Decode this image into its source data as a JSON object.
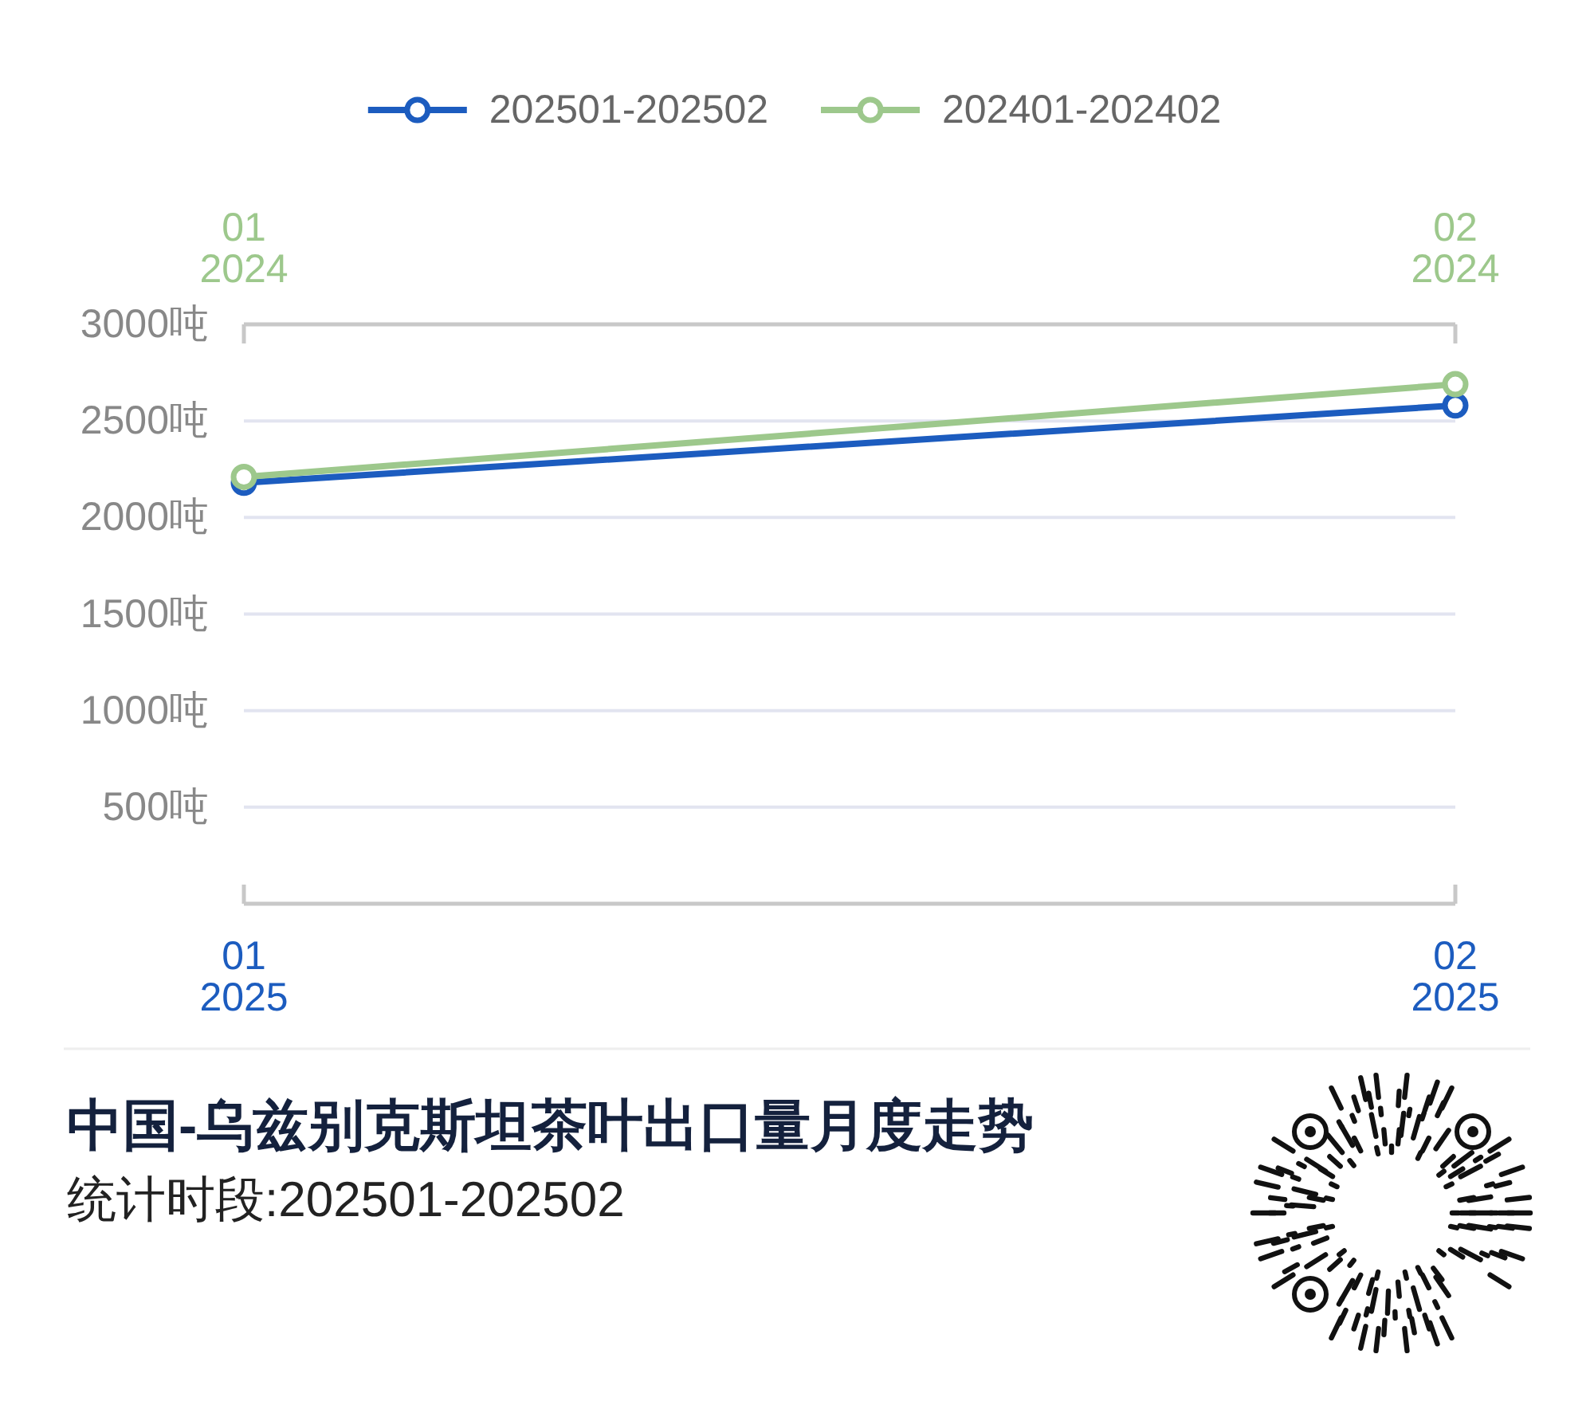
{
  "chart_data": {
    "type": "line",
    "title": "中国-乌兹别克斯坦茶叶出口量月度走势",
    "subtitle": "统计时段:202501-202502",
    "xlim": [
      "2025-01",
      "2025-02"
    ],
    "xticks": [
      {
        "value": "2025-01",
        "label": "01\n2025"
      },
      {
        "value": "2025-02",
        "label": "02\n2025"
      }
    ],
    "x2lim": [
      "2024-01",
      "2024-02"
    ],
    "x2ticks": [
      {
        "value": "2024-01",
        "label": "01\n2024"
      },
      {
        "value": "2024-02",
        "label": "02\n2024"
      }
    ],
    "ylim": [
      0,
      3000
    ],
    "yticks": [
      {
        "value": 500,
        "label": "500吨"
      },
      {
        "value": 1000,
        "label": "1000吨"
      },
      {
        "value": 1500,
        "label": "1500吨"
      },
      {
        "value": 2000,
        "label": "2000吨"
      },
      {
        "value": 2500,
        "label": "2500吨"
      },
      {
        "value": 3000,
        "label": "3000吨"
      }
    ],
    "series": [
      {
        "name": "202501-202502",
        "color": "#1c5cbf",
        "x": [
          "2025-01",
          "2025-02"
        ],
        "values": [
          2180,
          2580
        ]
      },
      {
        "name": "202401-202402",
        "color": "#9dc88c",
        "axis": "x2",
        "x": [
          "2024-01",
          "2024-02"
        ],
        "values": [
          2210,
          2690
        ]
      }
    ],
    "grid": "y",
    "legend": "top",
    "marker": "circle",
    "line_style": "solid"
  }
}
